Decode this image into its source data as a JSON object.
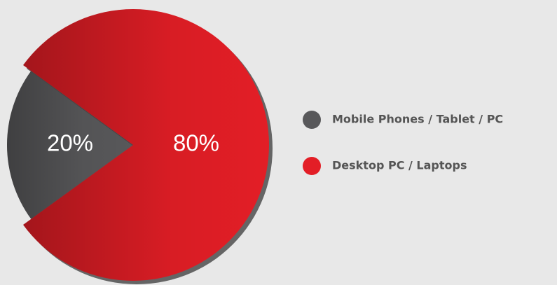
{
  "chart_data": {
    "type": "pie",
    "categories": [
      "Mobile Phones / Tablet / PC",
      "Desktop PC / Laptops"
    ],
    "values": [
      20,
      80
    ],
    "value_labels": [
      "20%",
      "80%"
    ],
    "colors": [
      "#58585a",
      "#e31e26"
    ]
  }
}
